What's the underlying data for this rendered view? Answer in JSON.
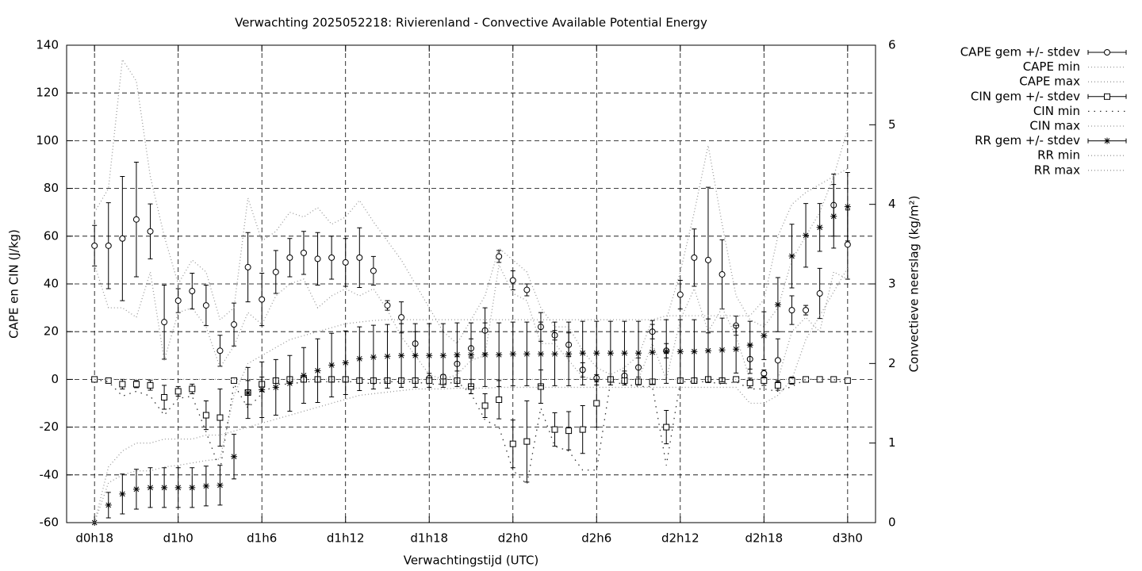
{
  "chart_data": {
    "type": "errorbar",
    "title": "Verwachting 2025052218: Rivierenland - Convective Available Potential Energy",
    "xlabel": "Verwachtingstijd (UTC)",
    "ylabel": "CAPE en CIN (J/kg)",
    "y2label": "Convectieve neerslag (kg/m²)",
    "grid": true,
    "legend": "outside-right-top",
    "x": [
      0,
      1,
      2,
      3,
      4,
      5,
      6,
      7,
      8,
      9,
      10,
      11,
      12,
      13,
      14,
      15,
      16,
      17,
      18,
      19,
      20,
      21,
      22,
      23,
      24,
      25,
      26,
      27,
      28,
      29,
      30,
      31,
      32,
      33,
      34,
      35,
      36,
      37,
      38,
      39,
      40,
      41,
      42,
      43,
      44,
      45,
      46,
      47,
      48,
      49,
      50,
      51,
      52,
      53,
      54
    ],
    "xlim": [
      -2,
      56
    ],
    "xticks": [
      {
        "value": 0,
        "label": "d0h18"
      },
      {
        "value": 6,
        "label": "d1h0"
      },
      {
        "value": 12,
        "label": "d1h6"
      },
      {
        "value": 18,
        "label": "d1h12"
      },
      {
        "value": 24,
        "label": "d1h18"
      },
      {
        "value": 30,
        "label": "d2h0"
      },
      {
        "value": 36,
        "label": "d2h6"
      },
      {
        "value": 42,
        "label": "d2h12"
      },
      {
        "value": 48,
        "label": "d2h18"
      },
      {
        "value": 54,
        "label": "d3h0"
      }
    ],
    "ylim": [
      -60,
      140
    ],
    "yticks": [
      -60,
      -40,
      -20,
      0,
      20,
      40,
      60,
      80,
      100,
      120,
      140
    ],
    "y2lim": [
      0,
      6
    ],
    "y2ticks": [
      0,
      1,
      2,
      3,
      4,
      5,
      6
    ],
    "series": [
      {
        "name": "CAPE gem +/- stdev",
        "style": "errorbars",
        "marker": "circle",
        "color": "#000000",
        "values": [
          56,
          56,
          59,
          67,
          62,
          24,
          33,
          37,
          31,
          12,
          23,
          47,
          33.5,
          45,
          51,
          53,
          50.5,
          51,
          49,
          51,
          45.5,
          31,
          26,
          15,
          0.5,
          1,
          6.5,
          13,
          20.5,
          51.5,
          41.5,
          37.5,
          22,
          18.5,
          14.5,
          4,
          0.5,
          0,
          1.5,
          5,
          20,
          12,
          35.5,
          51,
          50,
          44,
          22.5,
          8.5,
          2.5,
          8,
          29,
          29,
          36,
          73,
          56.5
        ],
        "errors": [
          8.5,
          18,
          26,
          24,
          11.5,
          15.5,
          5,
          7.5,
          8.5,
          6.5,
          9,
          14.5,
          11,
          9,
          8,
          9,
          11,
          9,
          10,
          12.5,
          6,
          2,
          6.5,
          5,
          2,
          1,
          3,
          4,
          9.5,
          2.5,
          4,
          2.5,
          6,
          2,
          5,
          3,
          1.5,
          0.5,
          2,
          4,
          3,
          3,
          6,
          12,
          30.5,
          14.5,
          4,
          6,
          1.5,
          9,
          6,
          2,
          10.5,
          13,
          14.5
        ]
      },
      {
        "name": "CAPE min",
        "style": "dotted",
        "color": "#999999",
        "values": [
          48,
          30,
          30,
          26,
          45,
          8,
          28,
          30,
          22,
          5,
          14,
          28,
          23,
          35,
          40,
          42,
          30,
          35,
          38,
          35,
          38,
          29,
          18,
          10,
          2,
          0,
          2,
          8,
          10,
          48,
          36,
          33,
          15,
          15,
          8,
          1,
          0,
          0,
          0,
          0,
          15,
          0,
          25,
          38,
          20,
          30,
          18,
          0,
          0,
          0,
          20,
          26,
          20,
          45,
          42
        ]
      },
      {
        "name": "CAPE max",
        "style": "dotted",
        "color": "#999999",
        "values": [
          70,
          80,
          134,
          125,
          85,
          60,
          40,
          50,
          45,
          25,
          30,
          76,
          58,
          62,
          70,
          68,
          72,
          65,
          68,
          75,
          66,
          58,
          50,
          40,
          30,
          20,
          15,
          25,
          35,
          55,
          50,
          45,
          30,
          22,
          22,
          12,
          5,
          2,
          5,
          10,
          25,
          25,
          45,
          70,
          98,
          65,
          35,
          25,
          22,
          30,
          50,
          60,
          70,
          85,
          105
        ]
      },
      {
        "name": "CIN gem +/- stdev",
        "style": "errorbars",
        "marker": "square",
        "color": "#000000",
        "values": [
          0,
          -0.5,
          -2,
          -2,
          -2.5,
          -7.5,
          -5,
          -4,
          -15,
          -16,
          -0.5,
          -5.5,
          -2,
          -0.5,
          0,
          0,
          0,
          0,
          0,
          -0.5,
          -0.5,
          -0.5,
          -0.5,
          -0.5,
          -0.5,
          -1,
          -0.5,
          -3,
          -11,
          -8.5,
          -27,
          -26,
          -3,
          -21,
          -21.5,
          -21,
          -10,
          0,
          -0.5,
          -1,
          -1,
          -20,
          -0.5,
          -0.5,
          0,
          -0.5,
          0,
          -1.5,
          -0.5,
          -2.5,
          -0.5,
          0,
          0,
          0,
          -0.5
        ],
        "errors": [
          0,
          0.5,
          2,
          1.5,
          2,
          5,
          2,
          2,
          6,
          12,
          0.5,
          5,
          3,
          1,
          1,
          0.5,
          0.5,
          0.5,
          0.5,
          0.5,
          1,
          0.5,
          0.5,
          0.5,
          1,
          1,
          0.5,
          3,
          5,
          8,
          10,
          17,
          7,
          7,
          8,
          10,
          10,
          0.5,
          1,
          1,
          1,
          7,
          0.5,
          0.5,
          0.5,
          1,
          0.5,
          2,
          2,
          2,
          1.5,
          0,
          0,
          0,
          1
        ]
      },
      {
        "name": "CIN min",
        "style": "sparse-dotted",
        "color": "#333333",
        "values": [
          0,
          -1,
          -7,
          -5,
          -7,
          -15,
          -8,
          -7,
          -22,
          -38,
          -2,
          -12,
          -6,
          -2,
          -2,
          -1,
          -1,
          -1,
          -1,
          -1,
          -2,
          -1,
          -1,
          -1,
          -2,
          -2,
          -1,
          -6,
          -17,
          -20,
          -38,
          -44,
          -12,
          -28,
          -30,
          -38,
          -38,
          -1,
          -2,
          -3,
          -3,
          -36,
          -1,
          -1,
          -1,
          -2,
          -1,
          -4,
          -4,
          -5,
          -3,
          0,
          0,
          0,
          -2
        ]
      },
      {
        "name": "CIN max",
        "style": "dotted",
        "color": "#999999",
        "values": [
          0,
          0,
          0,
          0,
          0,
          0,
          0,
          0,
          0,
          0,
          0,
          0,
          0,
          0,
          0,
          0,
          0,
          0,
          0,
          0,
          0,
          0,
          0,
          0,
          0,
          0,
          0,
          0,
          0,
          0,
          0,
          0,
          0,
          0,
          0,
          0,
          0,
          0,
          0,
          0,
          0,
          0,
          0,
          0,
          0,
          0,
          0,
          0,
          0,
          0,
          0,
          0,
          0,
          0,
          0
        ]
      },
      {
        "name": "RR gem +/- stdev",
        "style": "errorbars",
        "marker": "star",
        "color": "#000000",
        "axis": "y2",
        "values": [
          0,
          0.22,
          0.36,
          0.42,
          0.44,
          0.44,
          0.44,
          0.44,
          0.46,
          0.47,
          0.83,
          1.63,
          1.67,
          1.7,
          1.75,
          1.85,
          1.91,
          1.98,
          2.01,
          2.06,
          2.08,
          2.09,
          2.1,
          2.1,
          2.1,
          2.1,
          2.11,
          2.11,
          2.11,
          2.11,
          2.12,
          2.12,
          2.12,
          2.12,
          2.12,
          2.13,
          2.13,
          2.13,
          2.13,
          2.13,
          2.14,
          2.15,
          2.15,
          2.15,
          2.16,
          2.17,
          2.18,
          2.23,
          2.35,
          2.74,
          3.35,
          3.61,
          3.71,
          3.85,
          3.97
        ],
        "errors": [
          0,
          0.16,
          0.25,
          0.25,
          0.25,
          0.25,
          0.25,
          0.25,
          0.25,
          0.25,
          0.28,
          0.32,
          0.35,
          0.35,
          0.35,
          0.35,
          0.4,
          0.4,
          0.4,
          0.4,
          0.4,
          0.4,
          0.4,
          0.4,
          0.4,
          0.4,
          0.4,
          0.4,
          0.4,
          0.4,
          0.4,
          0.4,
          0.4,
          0.4,
          0.4,
          0.4,
          0.4,
          0.4,
          0.4,
          0.4,
          0.4,
          0.4,
          0.4,
          0.4,
          0.4,
          0.4,
          0.3,
          0.3,
          0.3,
          0.34,
          0.4,
          0.4,
          0.3,
          0.4,
          0.43
        ]
      },
      {
        "name": "RR min",
        "style": "dotted",
        "color": "#999999",
        "axis": "y2",
        "values": [
          0,
          0.7,
          0.9,
          1.0,
          1.0,
          1.05,
          1.05,
          1.05,
          1.1,
          1.1,
          1.15,
          1.2,
          1.25,
          1.3,
          1.35,
          1.4,
          1.45,
          1.5,
          1.55,
          1.6,
          1.62,
          1.64,
          1.66,
          1.68,
          1.68,
          1.68,
          1.69,
          1.69,
          1.69,
          1.7,
          1.7,
          1.7,
          1.7,
          1.7,
          1.7,
          1.7,
          1.7,
          1.7,
          1.7,
          1.7,
          1.7,
          1.7,
          1.7,
          1.7,
          1.7,
          1.7,
          1.7,
          1.5,
          1.5,
          1.6,
          1.8,
          2.3,
          2.6,
          2.9,
          3.2
        ]
      },
      {
        "name": "RR max",
        "style": "dotted",
        "color": "#999999",
        "axis": "y2",
        "values": [
          0,
          0.5,
          0.6,
          0.65,
          0.65,
          0.7,
          0.72,
          0.75,
          0.78,
          0.8,
          1.6,
          2.0,
          2.1,
          2.2,
          2.3,
          2.35,
          2.4,
          2.45,
          2.5,
          2.52,
          2.54,
          2.55,
          2.55,
          2.55,
          2.55,
          2.55,
          2.55,
          2.55,
          2.55,
          2.55,
          2.55,
          2.55,
          2.55,
          2.55,
          2.55,
          2.55,
          2.55,
          2.55,
          2.55,
          2.55,
          2.55,
          2.6,
          2.6,
          2.6,
          2.6,
          2.6,
          2.6,
          2.6,
          2.8,
          3.6,
          4.0,
          4.15,
          4.25,
          4.35,
          4.45
        ]
      }
    ]
  }
}
